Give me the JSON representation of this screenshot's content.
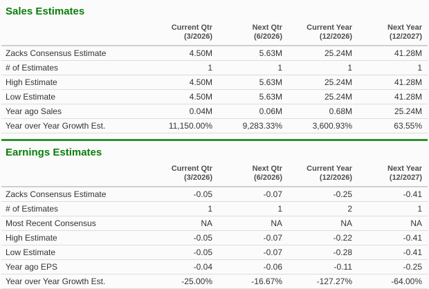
{
  "colors": {
    "accent_green": "#0c7e0c",
    "divider_green": "#2f8f2f"
  },
  "sections": [
    {
      "title": "Sales Estimates",
      "columns": [
        {
          "label": "Current Qtr",
          "period": "(3/2026)"
        },
        {
          "label": "Next Qtr",
          "period": "(6/2026)"
        },
        {
          "label": "Current Year",
          "period": "(12/2026)"
        },
        {
          "label": "Next Year",
          "period": "(12/2027)"
        }
      ],
      "rows": [
        {
          "label": "Zacks Consensus Estimate",
          "values": [
            "4.50M",
            "5.63M",
            "25.24M",
            "41.28M"
          ]
        },
        {
          "label": "# of Estimates",
          "values": [
            "1",
            "1",
            "1",
            "1"
          ]
        },
        {
          "label": "High Estimate",
          "values": [
            "4.50M",
            "5.63M",
            "25.24M",
            "41.28M"
          ]
        },
        {
          "label": "Low Estimate",
          "values": [
            "4.50M",
            "5.63M",
            "25.24M",
            "41.28M"
          ]
        },
        {
          "label": "Year ago Sales",
          "values": [
            "0.04M",
            "0.06M",
            "0.68M",
            "25.24M"
          ]
        },
        {
          "label": "Year over Year Growth Est.",
          "values": [
            "11,150.00%",
            "9,283.33%",
            "3,600.93%",
            "63.55%"
          ]
        }
      ]
    },
    {
      "title": "Earnings Estimates",
      "columns": [
        {
          "label": "Current Qtr",
          "period": "(3/2026)"
        },
        {
          "label": "Next Qtr",
          "period": "(6/2026)"
        },
        {
          "label": "Current Year",
          "period": "(12/2026)"
        },
        {
          "label": "Next Year",
          "period": "(12/2027)"
        }
      ],
      "rows": [
        {
          "label": "Zacks Consensus Estimate",
          "values": [
            "-0.05",
            "-0.07",
            "-0.25",
            "-0.41"
          ]
        },
        {
          "label": "# of Estimates",
          "values": [
            "1",
            "1",
            "2",
            "1"
          ]
        },
        {
          "label": "Most Recent Consensus",
          "values": [
            "NA",
            "NA",
            "NA",
            "NA"
          ]
        },
        {
          "label": "High Estimate",
          "values": [
            "-0.05",
            "-0.07",
            "-0.22",
            "-0.41"
          ]
        },
        {
          "label": "Low Estimate",
          "values": [
            "-0.05",
            "-0.07",
            "-0.28",
            "-0.41"
          ]
        },
        {
          "label": "Year ago EPS",
          "values": [
            "-0.04",
            "-0.06",
            "-0.11",
            "-0.25"
          ]
        },
        {
          "label": "Year over Year Growth Est.",
          "values": [
            "-25.00%",
            "-16.67%",
            "-127.27%",
            "-64.00%"
          ]
        }
      ]
    }
  ]
}
